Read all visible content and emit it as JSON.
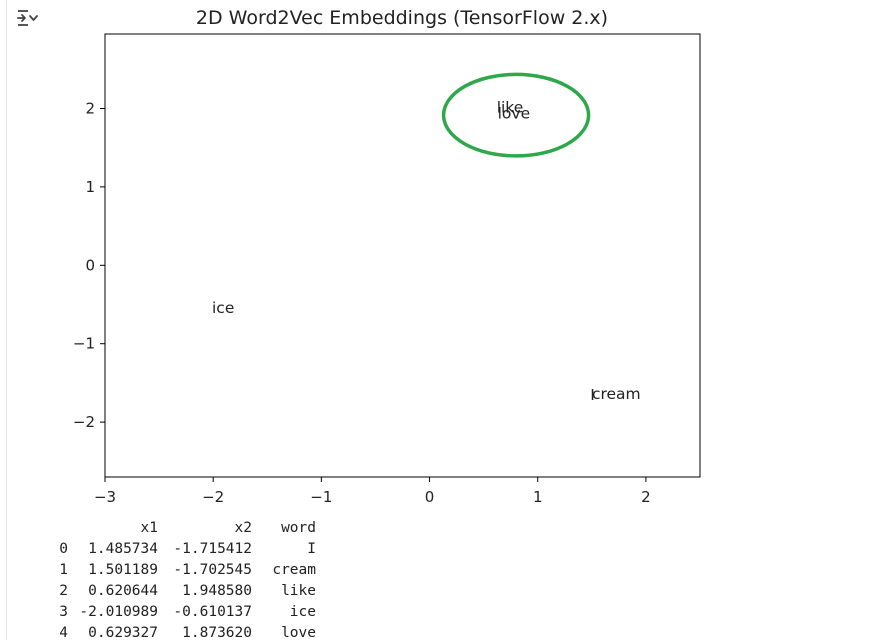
{
  "chart_data": {
    "type": "scatter",
    "title": "2D Word2Vec Embeddings (TensorFlow 2.x)",
    "xlabel": "",
    "ylabel": "",
    "xlim": [
      -3,
      2.5
    ],
    "ylim": [
      -2.7,
      2.95
    ],
    "xticks": [
      -3,
      -2,
      -1,
      0,
      1,
      2
    ],
    "yticks": [
      -2,
      -1,
      0,
      1,
      2
    ],
    "grid": false,
    "points": [
      {
        "word": "I",
        "x": 1.485734,
        "y": -1.715412
      },
      {
        "word": "cream",
        "x": 1.501189,
        "y": -1.702545
      },
      {
        "word": "like",
        "x": 0.620644,
        "y": 1.94858
      },
      {
        "word": "ice",
        "x": -2.010989,
        "y": -0.610137
      },
      {
        "word": "love",
        "x": 0.629327,
        "y": 1.87362
      }
    ],
    "annotation": {
      "shape": "ellipse",
      "color": "#2ea84a",
      "cx": 0.8,
      "cy": 1.915,
      "rx": 0.67,
      "ry": 0.52
    }
  },
  "table": {
    "columns": [
      "",
      "x1",
      "x2",
      "word"
    ],
    "rows": [
      [
        "0",
        "1.485734",
        "-1.715412",
        "I"
      ],
      [
        "1",
        "1.501189",
        "-1.702545",
        "cream"
      ],
      [
        "2",
        "0.620644",
        "1.948580",
        "like"
      ],
      [
        "3",
        "-2.010989",
        "-0.610137",
        "ice"
      ],
      [
        "4",
        "0.629327",
        "1.873620",
        "love"
      ]
    ]
  }
}
